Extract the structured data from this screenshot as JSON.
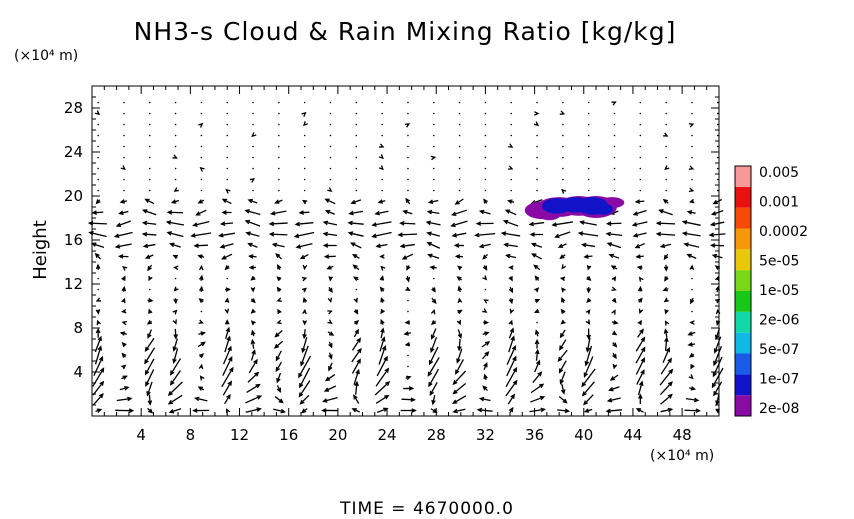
{
  "chart_data": {
    "type": "heatmap",
    "title": "NH3-s Cloud & Rain Mixing Ratio [kg/kg]",
    "ylabel": "Height",
    "y_unit": "(×10⁴ m)",
    "x_unit": "(×10⁴ m)",
    "xlim": [
      0,
      51
    ],
    "ylim": [
      0,
      30
    ],
    "x_ticks": [
      "4",
      "8",
      "12",
      "16",
      "20",
      "24",
      "28",
      "32",
      "36",
      "40",
      "44",
      "48"
    ],
    "y_ticks": [
      "4",
      "8",
      "12",
      "16",
      "20",
      "24",
      "28"
    ],
    "colorbar": {
      "levels": [
        "2e-08",
        "1e-07",
        "5e-07",
        "2e-06",
        "1e-05",
        "5e-05",
        "0.0002",
        "0.001",
        "0.005"
      ],
      "colors": [
        "#8a0aa6",
        "#1212c8",
        "#1a5ae8",
        "#10b8e8",
        "#10d8a8",
        "#18c818",
        "#78d818",
        "#e8c808",
        "#f89808",
        "#f84808",
        "#e81010",
        "#f89898"
      ]
    },
    "cloud_region": {
      "x_range": [
        36,
        43
      ],
      "y_range": [
        18,
        20
      ],
      "colors_present": [
        "#8a0aa6",
        "#1212c8"
      ]
    },
    "wind_vectors": true,
    "time_label": "TIME  =  4670000.0"
  }
}
